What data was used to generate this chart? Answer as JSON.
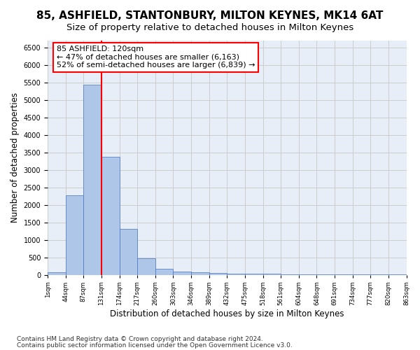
{
  "title1": "85, ASHFIELD, STANTONBURY, MILTON KEYNES, MK14 6AT",
  "title2": "Size of property relative to detached houses in Milton Keynes",
  "xlabel": "Distribution of detached houses by size in Milton Keynes",
  "ylabel": "Number of detached properties",
  "footer1": "Contains HM Land Registry data © Crown copyright and database right 2024.",
  "footer2": "Contains public sector information licensed under the Open Government Licence v3.0.",
  "annotation_line1": "85 ASHFIELD: 120sqm",
  "annotation_line2": "← 47% of detached houses are smaller (6,163)",
  "annotation_line3": "52% of semi-detached houses are larger (6,839) →",
  "bar_values": [
    70,
    2280,
    5430,
    3380,
    1310,
    480,
    165,
    90,
    70,
    50,
    40,
    30,
    25,
    20,
    15,
    10,
    8,
    5,
    5,
    3
  ],
  "bin_labels": [
    "1sqm",
    "44sqm",
    "87sqm",
    "131sqm",
    "174sqm",
    "217sqm",
    "260sqm",
    "303sqm",
    "346sqm",
    "389sqm",
    "432sqm",
    "475sqm",
    "518sqm",
    "561sqm",
    "604sqm",
    "648sqm",
    "691sqm",
    "734sqm",
    "777sqm",
    "820sqm",
    "863sqm"
  ],
  "bar_color": "#aec6e8",
  "bar_edge_color": "#4472c4",
  "vline_color": "red",
  "annotation_box_color": "red",
  "ylim": [
    0,
    6700
  ],
  "yticks": [
    0,
    500,
    1000,
    1500,
    2000,
    2500,
    3000,
    3500,
    4000,
    4500,
    5000,
    5500,
    6000,
    6500
  ],
  "grid_color": "#cccccc",
  "background_color": "#e8eef8",
  "title1_fontsize": 11,
  "title2_fontsize": 9.5,
  "xlabel_fontsize": 8.5,
  "ylabel_fontsize": 8.5,
  "annotation_fontsize": 8,
  "footer_fontsize": 6.5
}
